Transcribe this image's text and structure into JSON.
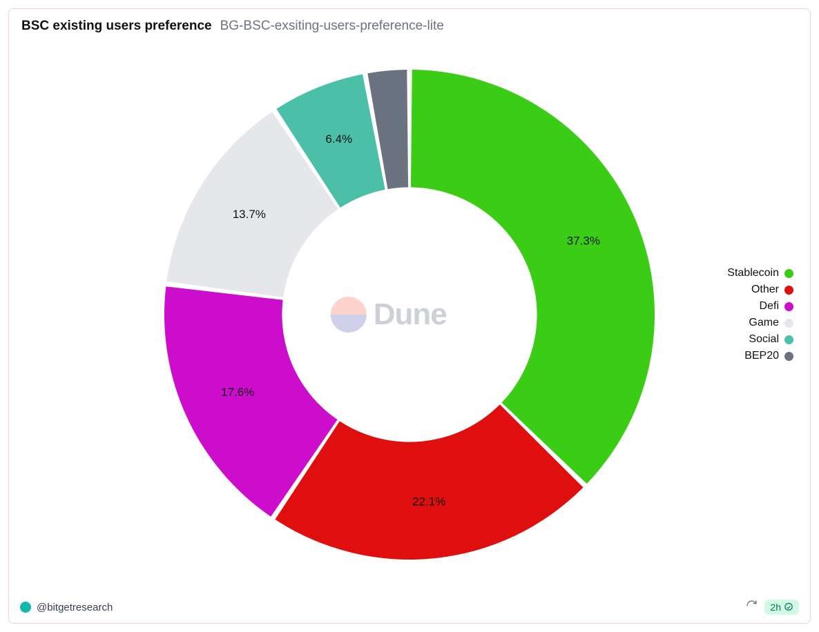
{
  "header": {
    "title": "BSC existing users preference",
    "subtitle": "BG-BSC-exsiting-users-preference-lite"
  },
  "chart": {
    "type": "donut",
    "inner_radius_ratio": 0.52,
    "gap_deg": 1.2,
    "label_radius_ratio": 0.77,
    "background_color": "#ffffff",
    "slices": [
      {
        "label": "Stablecoin",
        "value": 37.3,
        "display": "37.3%",
        "color": "#3bcc15"
      },
      {
        "label": "Other",
        "value": 22.1,
        "display": "22.1%",
        "color": "#e00f0f"
      },
      {
        "label": "Defi",
        "value": 17.6,
        "display": "17.6%",
        "color": "#cc0ecc"
      },
      {
        "label": "Game",
        "value": 13.7,
        "display": "13.7%",
        "color": "#e5e7eb"
      },
      {
        "label": "Social",
        "value": 6.4,
        "display": "6.4%",
        "color": "#4bbfa8"
      },
      {
        "label": "BEP20",
        "value": 2.9,
        "display": "",
        "color": "#6b7280"
      }
    ]
  },
  "watermark": {
    "text": "Dune"
  },
  "footer": {
    "author": "@bitgetresearch",
    "time_badge": "2h"
  }
}
